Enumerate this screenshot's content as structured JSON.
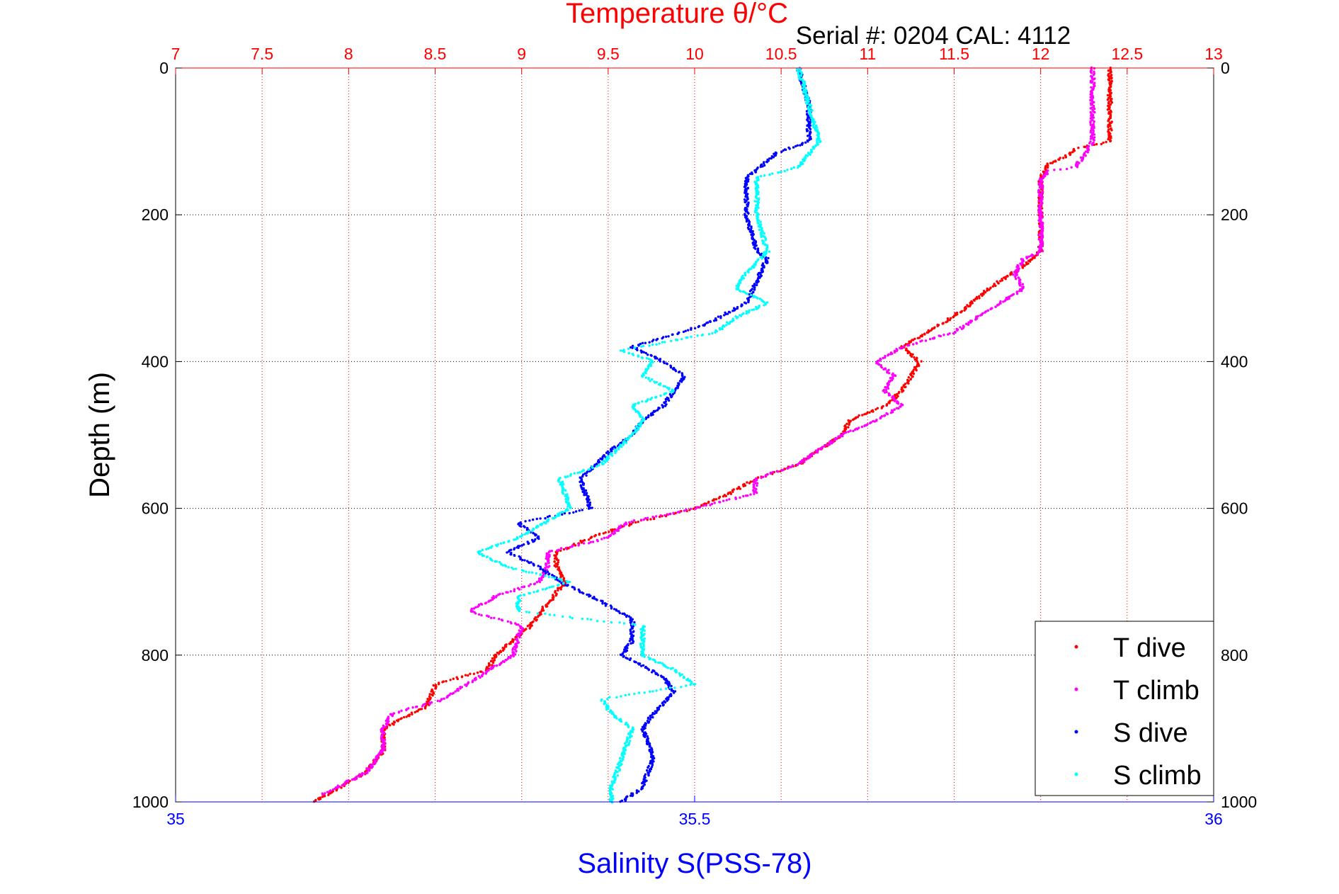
{
  "chart_data": {
    "type": "scatter",
    "title": "Temperature θ/°C",
    "subtitle": "Serial #: 0204  CAL: 4112",
    "xlabel": "Salinity S(PSS-78)",
    "ylabel": "Depth (m)",
    "top_axis": {
      "label": "Temperature θ/°C",
      "range": [
        7,
        13
      ],
      "ticks": [
        "7",
        "7.5",
        "8",
        "8.5",
        "9",
        "9.5",
        "10",
        "10.5",
        "11",
        "11.5",
        "12",
        "12.5",
        "13"
      ]
    },
    "bottom_axis": {
      "label": "Salinity S(PSS-78)",
      "range": [
        35,
        36
      ],
      "ticks": [
        "35",
        "35.5",
        "36"
      ]
    },
    "y_axis": {
      "range": [
        0,
        1000
      ],
      "reversed": true,
      "ticks": [
        "0",
        "200",
        "400",
        "600",
        "800",
        "1000"
      ]
    },
    "grid": true,
    "legend_position": "bottom-right",
    "series": [
      {
        "name": "T dive",
        "axis": "temperature",
        "color": "#ff0000",
        "depth": [
          0,
          50,
          100,
          110,
          120,
          130,
          150,
          200,
          250,
          270,
          300,
          330,
          360,
          380,
          400,
          420,
          440,
          460,
          480,
          500,
          540,
          560,
          580,
          600,
          620,
          640,
          660,
          680,
          700,
          730,
          760,
          800,
          820,
          840,
          870,
          900,
          930,
          960,
          980,
          1000
        ],
        "values": [
          12.4,
          12.4,
          12.4,
          12.2,
          12.15,
          12.05,
          12.0,
          12.0,
          12.0,
          11.9,
          11.7,
          11.55,
          11.35,
          11.2,
          11.3,
          11.25,
          11.2,
          11.1,
          10.9,
          10.85,
          10.6,
          10.35,
          10.2,
          10.0,
          9.65,
          9.4,
          9.2,
          9.2,
          9.25,
          9.15,
          9.05,
          8.85,
          8.8,
          8.5,
          8.45,
          8.2,
          8.2,
          8.1,
          7.95,
          7.8
        ]
      },
      {
        "name": "T climb",
        "axis": "temperature",
        "color": "#ff00ff",
        "depth": [
          0,
          50,
          100,
          120,
          135,
          140,
          150,
          200,
          250,
          260,
          280,
          300,
          330,
          360,
          380,
          400,
          420,
          440,
          460,
          480,
          500,
          540,
          560,
          580,
          600,
          620,
          640,
          660,
          680,
          700,
          720,
          740,
          760,
          800,
          830,
          860,
          880,
          900,
          930,
          960,
          990
        ],
        "values": [
          12.3,
          12.3,
          12.3,
          12.25,
          12.2,
          12.05,
          12.0,
          12.0,
          12.0,
          11.9,
          11.85,
          11.9,
          11.7,
          11.5,
          11.2,
          11.05,
          11.15,
          11.1,
          11.2,
          11.05,
          10.85,
          10.6,
          10.35,
          10.35,
          10.0,
          9.6,
          9.5,
          9.15,
          9.15,
          9.1,
          8.85,
          8.7,
          9.0,
          8.95,
          8.75,
          8.55,
          8.25,
          8.2,
          8.2,
          8.1,
          7.85
        ]
      },
      {
        "name": "S dive",
        "axis": "salinity",
        "color": "#0000ff",
        "depth": [
          0,
          50,
          100,
          115,
          150,
          180,
          200,
          250,
          260,
          290,
          320,
          350,
          380,
          400,
          420,
          440,
          460,
          480,
          500,
          520,
          560,
          600,
          620,
          640,
          660,
          680,
          700,
          720,
          750,
          780,
          800,
          830,
          850,
          880,
          900,
          940,
          980,
          1000
        ],
        "values": [
          35.6,
          35.61,
          35.61,
          35.58,
          35.55,
          35.55,
          35.55,
          35.56,
          35.57,
          35.56,
          35.55,
          35.51,
          35.44,
          35.47,
          35.49,
          35.48,
          35.47,
          35.45,
          35.44,
          35.42,
          35.39,
          35.4,
          35.33,
          35.35,
          35.32,
          35.35,
          35.37,
          35.4,
          35.44,
          35.44,
          35.43,
          35.47,
          35.48,
          35.46,
          35.45,
          35.46,
          35.45,
          35.43
        ]
      },
      {
        "name": "S climb",
        "axis": "salinity",
        "color": "#00ffff",
        "depth": [
          0,
          50,
          100,
          135,
          150,
          200,
          250,
          280,
          300,
          320,
          340,
          360,
          385,
          400,
          420,
          440,
          460,
          480,
          500,
          540,
          560,
          600,
          640,
          660,
          680,
          700,
          720,
          740,
          760,
          800,
          820,
          840,
          860,
          880,
          900,
          940,
          980,
          1000
        ],
        "values": [
          35.6,
          35.61,
          35.62,
          35.6,
          35.56,
          35.56,
          35.57,
          35.55,
          35.54,
          35.57,
          35.54,
          35.52,
          35.43,
          35.46,
          35.45,
          35.48,
          35.44,
          35.45,
          35.44,
          35.41,
          35.37,
          35.38,
          35.33,
          35.29,
          35.32,
          35.38,
          35.33,
          35.33,
          35.45,
          35.45,
          35.48,
          35.5,
          35.41,
          35.42,
          35.44,
          35.43,
          35.42,
          35.42
        ]
      }
    ]
  }
}
